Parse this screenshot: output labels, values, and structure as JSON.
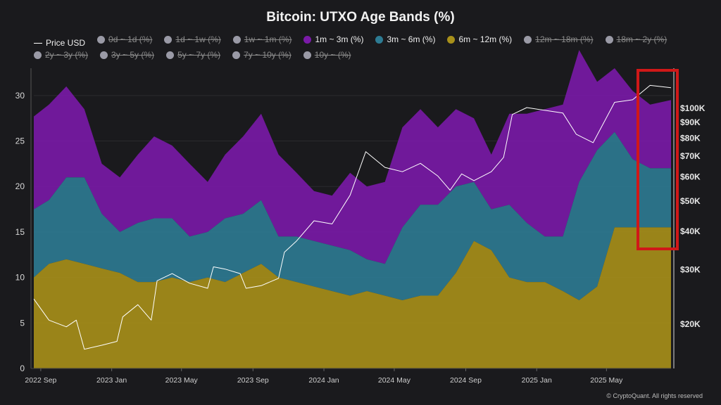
{
  "chart_data": {
    "type": "area",
    "title": "Bitcoin: UTXO Age Bands (%)",
    "legend": [
      {
        "label": "Price USD",
        "kind": "line",
        "color": "#ffffff",
        "active": true
      },
      {
        "label": "0d ~ 1d (%)",
        "kind": "dot",
        "color": "#9a9aa6",
        "active": false
      },
      {
        "label": "1d ~ 1w (%)",
        "kind": "dot",
        "color": "#9a9aa6",
        "active": false
      },
      {
        "label": "1w ~ 1m (%)",
        "kind": "dot",
        "color": "#9a9aa6",
        "active": false
      },
      {
        "label": "1m ~ 3m (%)",
        "kind": "dot",
        "color": "#7a1aa8",
        "active": true
      },
      {
        "label": "3m ~ 6m (%)",
        "kind": "dot",
        "color": "#2d7b93",
        "active": true
      },
      {
        "label": "6m ~ 12m (%)",
        "kind": "dot",
        "color": "#a8901a",
        "active": true
      },
      {
        "label": "12m ~ 18m (%)",
        "kind": "dot",
        "color": "#9a9aa6",
        "active": false
      },
      {
        "label": "18m ~ 2y (%)",
        "kind": "dot",
        "color": "#9a9aa6",
        "active": false
      },
      {
        "label": "2y ~ 3y (%)",
        "kind": "dot",
        "color": "#9a9aa6",
        "active": false
      },
      {
        "label": "3y ~ 5y (%)",
        "kind": "dot",
        "color": "#9a9aa6",
        "active": false
      },
      {
        "label": "5y ~ 7y (%)",
        "kind": "dot",
        "color": "#9a9aa6",
        "active": false
      },
      {
        "label": "7y ~ 10y (%)",
        "kind": "dot",
        "color": "#9a9aa6",
        "active": false
      },
      {
        "label": "10y ~ (%)",
        "kind": "dot",
        "color": "#9a9aa6",
        "active": false
      }
    ],
    "x_ticks": [
      "2022 Sep",
      "2023 Jan",
      "2023 May",
      "2023 Sep",
      "2024 Jan",
      "2024 May",
      "2024 Sep",
      "2025 Jan",
      "2025 May"
    ],
    "y_left_ticks": [
      0,
      5,
      10,
      15,
      20,
      25,
      30
    ],
    "y_left_range": [
      0,
      33
    ],
    "y_right_ticks": [
      "$20K",
      "$30K",
      "$40K",
      "$50K",
      "$60K",
      "$70K",
      "$80K",
      "$90K",
      "$100K"
    ],
    "y_right_values": [
      20000,
      30000,
      40000,
      50000,
      60000,
      70000,
      80000,
      90000,
      100000
    ],
    "y_right_scale": "log",
    "x_range": [
      "2022-08-20",
      "2025-08-20"
    ],
    "series": [
      {
        "name": "1m ~ 3m (%)",
        "color": "#7a1aa8",
        "stacked": true,
        "x": [
          "2022-08-20",
          "2022-09-15",
          "2022-10-15",
          "2022-11-15",
          "2022-12-15",
          "2023-01-15",
          "2023-02-15",
          "2023-03-15",
          "2023-04-15",
          "2023-05-15",
          "2023-06-15",
          "2023-07-15",
          "2023-08-15",
          "2023-09-15",
          "2023-10-15",
          "2023-11-15",
          "2023-12-15",
          "2024-01-15",
          "2024-02-15",
          "2024-03-15",
          "2024-04-15",
          "2024-05-15",
          "2024-06-15",
          "2024-07-15",
          "2024-08-15",
          "2024-09-15",
          "2024-10-15",
          "2024-11-15",
          "2024-12-15",
          "2025-01-15",
          "2025-02-15",
          "2025-03-15",
          "2025-04-15",
          "2025-05-15",
          "2025-06-15",
          "2025-07-15",
          "2025-08-20"
        ],
        "values": [
          10.2,
          10.5,
          10.0,
          7.5,
          5.5,
          6.0,
          7.5,
          9.0,
          8.0,
          8.0,
          5.5,
          7.0,
          8.5,
          9.5,
          9.0,
          7.0,
          5.5,
          5.5,
          8.5,
          8.0,
          9.0,
          11.0,
          10.5,
          8.5,
          8.5,
          7.0,
          6.0,
          10.0,
          12.0,
          14.0,
          14.5,
          14.5,
          7.5,
          7.0,
          7.5,
          7.0,
          7.5
        ]
      },
      {
        "name": "3m ~ 6m (%)",
        "color": "#2d7b93",
        "stacked": true,
        "x": [
          "2022-08-20",
          "2022-09-15",
          "2022-10-15",
          "2022-11-15",
          "2022-12-15",
          "2023-01-15",
          "2023-02-15",
          "2023-03-15",
          "2023-04-15",
          "2023-05-15",
          "2023-06-15",
          "2023-07-15",
          "2023-08-15",
          "2023-09-15",
          "2023-10-15",
          "2023-11-15",
          "2023-12-15",
          "2024-01-15",
          "2024-02-15",
          "2024-03-15",
          "2024-04-15",
          "2024-05-15",
          "2024-06-15",
          "2024-07-15",
          "2024-08-15",
          "2024-09-15",
          "2024-10-15",
          "2024-11-15",
          "2024-12-15",
          "2025-01-15",
          "2025-02-15",
          "2025-03-15",
          "2025-04-15",
          "2025-05-15",
          "2025-06-15",
          "2025-07-15",
          "2025-08-20"
        ],
        "values": [
          7.5,
          7.0,
          9.0,
          9.5,
          6.0,
          4.5,
          6.5,
          7.0,
          6.5,
          5.0,
          5.0,
          7.0,
          6.5,
          7.0,
          4.5,
          5.0,
          5.0,
          5.0,
          5.0,
          3.5,
          3.5,
          8.0,
          10.0,
          10.0,
          9.5,
          6.5,
          4.5,
          8.0,
          6.5,
          5.0,
          6.0,
          13.0,
          15.0,
          10.5,
          7.5,
          6.5,
          6.5
        ]
      },
      {
        "name": "6m ~ 12m (%)",
        "color": "#a8901a",
        "stacked": true,
        "x": [
          "2022-08-20",
          "2022-09-15",
          "2022-10-15",
          "2022-11-15",
          "2022-12-15",
          "2023-01-15",
          "2023-02-15",
          "2023-03-15",
          "2023-04-15",
          "2023-05-15",
          "2023-06-15",
          "2023-07-15",
          "2023-08-15",
          "2023-09-15",
          "2023-10-15",
          "2023-11-15",
          "2023-12-15",
          "2024-01-15",
          "2024-02-15",
          "2024-03-15",
          "2024-04-15",
          "2024-05-15",
          "2024-06-15",
          "2024-07-15",
          "2024-08-15",
          "2024-09-15",
          "2024-10-15",
          "2024-11-15",
          "2024-12-15",
          "2025-01-15",
          "2025-02-15",
          "2025-03-15",
          "2025-04-15",
          "2025-05-15",
          "2025-06-15",
          "2025-07-15",
          "2025-08-20"
        ],
        "values": [
          10.0,
          11.5,
          12.0,
          11.5,
          11.0,
          10.5,
          9.5,
          9.5,
          10.0,
          9.5,
          10.0,
          9.5,
          10.5,
          11.5,
          10.0,
          9.5,
          9.0,
          8.5,
          8.0,
          8.5,
          8.0,
          7.5,
          8.0,
          8.0,
          10.5,
          14.0,
          13.0,
          10.0,
          9.5,
          9.5,
          8.5,
          7.5,
          9.0,
          15.5,
          15.5,
          15.5,
          15.5
        ]
      },
      {
        "name": "Price USD",
        "color": "#ffffff",
        "type": "line",
        "axis": "right",
        "x": [
          "2022-08-20",
          "2022-09-15",
          "2022-10-15",
          "2022-11-01",
          "2022-11-15",
          "2022-12-15",
          "2023-01-10",
          "2023-01-20",
          "2023-02-15",
          "2023-03-10",
          "2023-03-20",
          "2023-04-15",
          "2023-05-15",
          "2023-06-15",
          "2023-06-25",
          "2023-07-15",
          "2023-08-10",
          "2023-08-20",
          "2023-09-15",
          "2023-10-15",
          "2023-10-25",
          "2023-11-15",
          "2023-12-15",
          "2024-01-15",
          "2024-02-15",
          "2024-03-13",
          "2024-04-15",
          "2024-05-15",
          "2024-06-15",
          "2024-07-15",
          "2024-08-05",
          "2024-08-25",
          "2024-09-15",
          "2024-10-15",
          "2024-11-05",
          "2024-11-20",
          "2024-12-15",
          "2025-01-15",
          "2025-02-15",
          "2025-03-10",
          "2025-04-08",
          "2025-05-15",
          "2025-06-15",
          "2025-07-15",
          "2025-08-20"
        ],
        "values": [
          24000,
          20500,
          19500,
          20500,
          16500,
          17000,
          17500,
          21000,
          23000,
          20500,
          27500,
          29000,
          27000,
          26000,
          30500,
          30000,
          29000,
          26000,
          26500,
          28000,
          34000,
          37000,
          43000,
          42000,
          52000,
          72000,
          64000,
          62000,
          66000,
          60000,
          54000,
          61000,
          58000,
          62000,
          69000,
          95000,
          100000,
          98000,
          96000,
          82000,
          77000,
          104000,
          106000,
          118000,
          116000
        ]
      }
    ],
    "annotation": "red highlight box on most recent period"
  },
  "credit": "© CryptoQuant. All rights reserved"
}
